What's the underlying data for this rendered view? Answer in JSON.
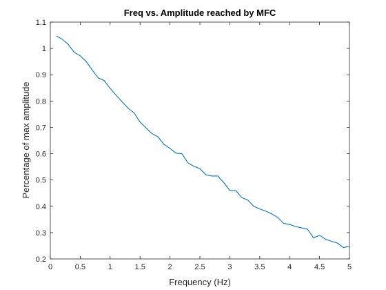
{
  "chart_data": {
    "type": "line",
    "title": "Freq vs. Amplitude reached by MFC",
    "xlabel": "Frequency (Hz)",
    "ylabel": "Percentage of max amplitude",
    "xlim": [
      0,
      5
    ],
    "ylim": [
      0.2,
      1.1
    ],
    "xticks": [
      0,
      0.5,
      1,
      1.5,
      2,
      2.5,
      3,
      3.5,
      4,
      4.5,
      5
    ],
    "xtick_labels": [
      "0",
      "0.5",
      "1",
      "1.5",
      "2",
      "2.5",
      "3",
      "3.5",
      "4",
      "4.5",
      "5"
    ],
    "yticks": [
      0.2,
      0.3,
      0.4,
      0.5,
      0.6,
      0.7,
      0.8,
      0.9,
      1.0,
      1.1
    ],
    "ytick_labels": [
      "0.2",
      "0.3",
      "0.4",
      "0.5",
      "0.6",
      "0.7",
      "0.8",
      "0.9",
      "1",
      "1.1"
    ],
    "grid": false,
    "line_color": "#0072bd",
    "series": [
      {
        "x": [
          0.1,
          0.2,
          0.3,
          0.4,
          0.5,
          0.6,
          0.7,
          0.8,
          0.9,
          1.0,
          1.1,
          1.2,
          1.3,
          1.4,
          1.5,
          1.6,
          1.7,
          1.8,
          1.9,
          2.0,
          2.1,
          2.2,
          2.3,
          2.4,
          2.5,
          2.6,
          2.7,
          2.8,
          2.9,
          3.0,
          3.1,
          3.2,
          3.3,
          3.4,
          3.5,
          3.6,
          3.7,
          3.8,
          3.9,
          4.0,
          4.1,
          4.2,
          4.3,
          4.4,
          4.5,
          4.6,
          4.7,
          4.8,
          4.9,
          5.0
        ],
        "y": [
          1.047,
          1.035,
          1.015,
          0.985,
          0.972,
          0.95,
          0.918,
          0.888,
          0.878,
          0.848,
          0.822,
          0.797,
          0.773,
          0.755,
          0.72,
          0.698,
          0.676,
          0.664,
          0.635,
          0.62,
          0.602,
          0.6,
          0.565,
          0.552,
          0.543,
          0.52,
          0.515,
          0.515,
          0.49,
          0.46,
          0.46,
          0.433,
          0.424,
          0.4,
          0.39,
          0.382,
          0.371,
          0.358,
          0.335,
          0.331,
          0.323,
          0.318,
          0.313,
          0.28,
          0.29,
          0.275,
          0.267,
          0.26,
          0.243,
          0.248
        ]
      }
    ]
  }
}
